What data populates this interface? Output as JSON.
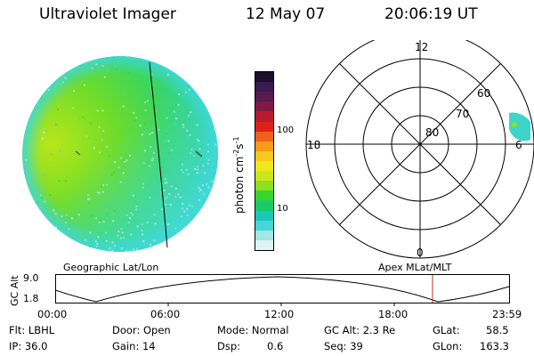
{
  "header": {
    "title": "Ultraviolet Imager",
    "date": "12 May 07",
    "time": "20:06:19 UT"
  },
  "colorbar": {
    "label": "photon cm",
    "label_sup1": "-2",
    "label_mid": "s",
    "label_sup2": "-1",
    "ticks": [
      "100",
      "10"
    ],
    "colors": [
      "#dff4f4",
      "#9ee8e6",
      "#47d6d6",
      "#19c8b8",
      "#19cc66",
      "#37d62a",
      "#8fe01e",
      "#c8e81a",
      "#f0e81a",
      "#f8c81a",
      "#f89b1a",
      "#f0601a",
      "#e0201a",
      "#b81a30",
      "#801a40",
      "#581a50",
      "#3a1a50",
      "#1a1028"
    ]
  },
  "polar": {
    "mlt_labels": [
      "12",
      "18",
      "6",
      "0"
    ],
    "lat_labels": [
      "60",
      "70",
      "80"
    ]
  },
  "orbit_plot": {
    "left_label": "Geographic Lat/Lon",
    "right_label": "Apex MLat/MLT",
    "axis_label": "GC Alt",
    "y_ticks": [
      "9.0",
      "1.8"
    ],
    "x_ticks": [
      "00:00",
      "06:00",
      "12:00",
      "18:00",
      "23:59"
    ]
  },
  "info": {
    "flt": "Flt: LBHL",
    "ip": "IP: 36.0",
    "door": "Door: Open",
    "gain": "Gain: 14",
    "mode": "Mode: Normal",
    "dsp_label": "Dsp:",
    "dsp_value": "0.6",
    "gc_alt": "GC Alt: 2.3 Re",
    "seq": "Seq: 39",
    "glat_label": "GLat:",
    "glat_value": "58.5",
    "glon_label": "GLon:",
    "glon_value": "163.3"
  }
}
